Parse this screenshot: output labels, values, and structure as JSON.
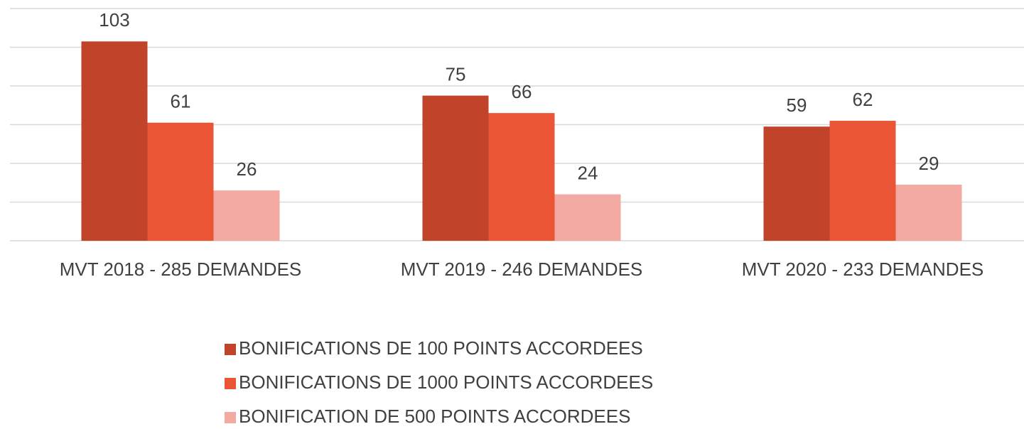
{
  "chart_data": {
    "type": "bar",
    "categories": [
      "MVT 2018 - 285 DEMANDES",
      "MVT 2019 - 246 DEMANDES",
      "MVT 2020 - 233 DEMANDES"
    ],
    "series": [
      {
        "name": "BONIFICATIONS DE 100 POINTS ACCORDEES",
        "color": "#c1432a",
        "values": [
          103,
          75,
          59
        ]
      },
      {
        "name": "BONIFICATIONS DE 1000 POINTS ACCORDEES",
        "color": "#e95535",
        "values": [
          61,
          66,
          62
        ]
      },
      {
        "name": "BONIFICATION DE 500 POINTS ACCORDEES",
        "color": "#f2aaa3",
        "values": [
          26,
          24,
          29
        ]
      }
    ],
    "ylim": [
      0,
      120
    ],
    "yticks": [
      0,
      20,
      40,
      60,
      80,
      100,
      120
    ],
    "grid": true,
    "legend": "bottom"
  }
}
